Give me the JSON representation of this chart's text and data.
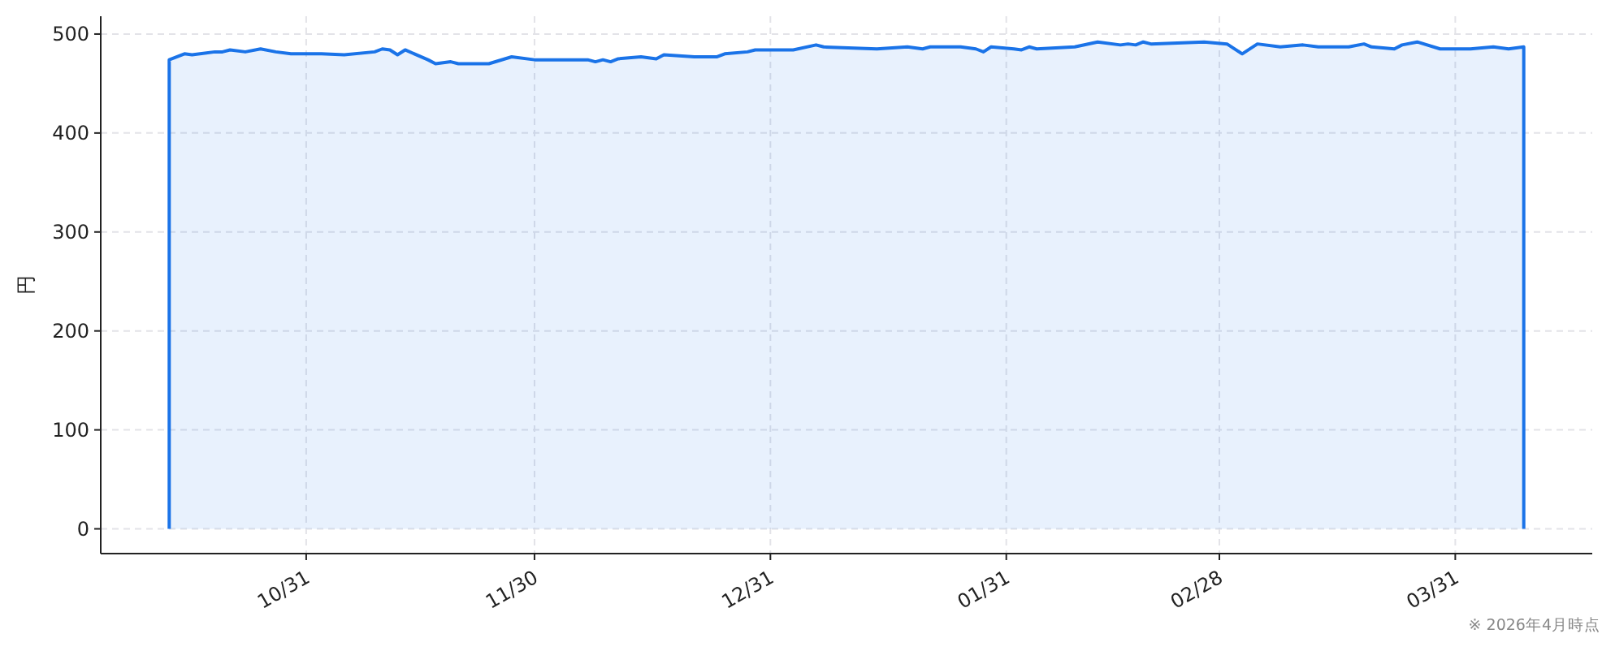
{
  "chart_data": {
    "type": "area",
    "ylabel": "円",
    "annotations": [
      "※ 2026年4月時点"
    ],
    "x": [
      "2025-10-13",
      "2025-10-15",
      "2025-10-16",
      "2025-10-19",
      "2025-10-20",
      "2025-10-21",
      "2025-10-23",
      "2025-10-25",
      "2025-10-27",
      "2025-10-29",
      "2025-11-02",
      "2025-11-05",
      "2025-11-09",
      "2025-11-10",
      "2025-11-11",
      "2025-11-12",
      "2025-11-13",
      "2025-11-16",
      "2025-11-17",
      "2025-11-19",
      "2025-11-20",
      "2025-11-24",
      "2025-11-27",
      "2025-11-30",
      "2025-12-07",
      "2025-12-08",
      "2025-12-09",
      "2025-12-10",
      "2025-12-11",
      "2025-12-14",
      "2025-12-16",
      "2025-12-17",
      "2025-12-21",
      "2025-12-24",
      "2025-12-25",
      "2025-12-28",
      "2025-12-29",
      "2026-01-03",
      "2026-01-06",
      "2026-01-07",
      "2026-01-14",
      "2026-01-18",
      "2026-01-20",
      "2026-01-21",
      "2026-01-25",
      "2026-01-27",
      "2026-01-28",
      "2026-01-29",
      "2026-02-01",
      "2026-02-02",
      "2026-02-03",
      "2026-02-04",
      "2026-02-09",
      "2026-02-12",
      "2026-02-15",
      "2026-02-16",
      "2026-02-17",
      "2026-02-18",
      "2026-02-19",
      "2026-02-26",
      "2026-03-01",
      "2026-03-03",
      "2026-03-05",
      "2026-03-08",
      "2026-03-11",
      "2026-03-13",
      "2026-03-17",
      "2026-03-19",
      "2026-03-20",
      "2026-03-23",
      "2026-03-24",
      "2026-03-26",
      "2026-03-29",
      "2026-03-31",
      "2026-04-02",
      "2026-04-05",
      "2026-04-07",
      "2026-04-09"
    ],
    "series": [
      {
        "color": "#1a73e8",
        "values": [
          474,
          480,
          479,
          482,
          482,
          484,
          482,
          485,
          482,
          480,
          480,
          479,
          482,
          485,
          484,
          479,
          484,
          474,
          470,
          472,
          470,
          470,
          477,
          474,
          474,
          472,
          474,
          472,
          475,
          477,
          475,
          479,
          477,
          477,
          480,
          482,
          484,
          484,
          489,
          487,
          485,
          487,
          485,
          487,
          487,
          485,
          482,
          487,
          485,
          484,
          487,
          485,
          487,
          492,
          489,
          490,
          489,
          492,
          490,
          492,
          490,
          480,
          490,
          487,
          489,
          487,
          487,
          490,
          487,
          485,
          489,
          492,
          485,
          485,
          485,
          487,
          485,
          487
        ]
      }
    ],
    "xlim": [
      "2025-10-04",
      "2026-04-18"
    ],
    "xticks": [
      {
        "value": "2025-10-31",
        "label": "10/31"
      },
      {
        "value": "2025-11-30",
        "label": "11/30"
      },
      {
        "value": "2025-12-31",
        "label": "12/31"
      },
      {
        "value": "2026-01-31",
        "label": "01/31"
      },
      {
        "value": "2026-02-28",
        "label": "02/28"
      },
      {
        "value": "2026-03-31",
        "label": "03/31"
      }
    ],
    "ylim": [
      -25,
      518
    ],
    "yticks": [
      0,
      100,
      200,
      300,
      400,
      500
    ],
    "grid": true,
    "line_style": "solid",
    "marker": "none"
  }
}
